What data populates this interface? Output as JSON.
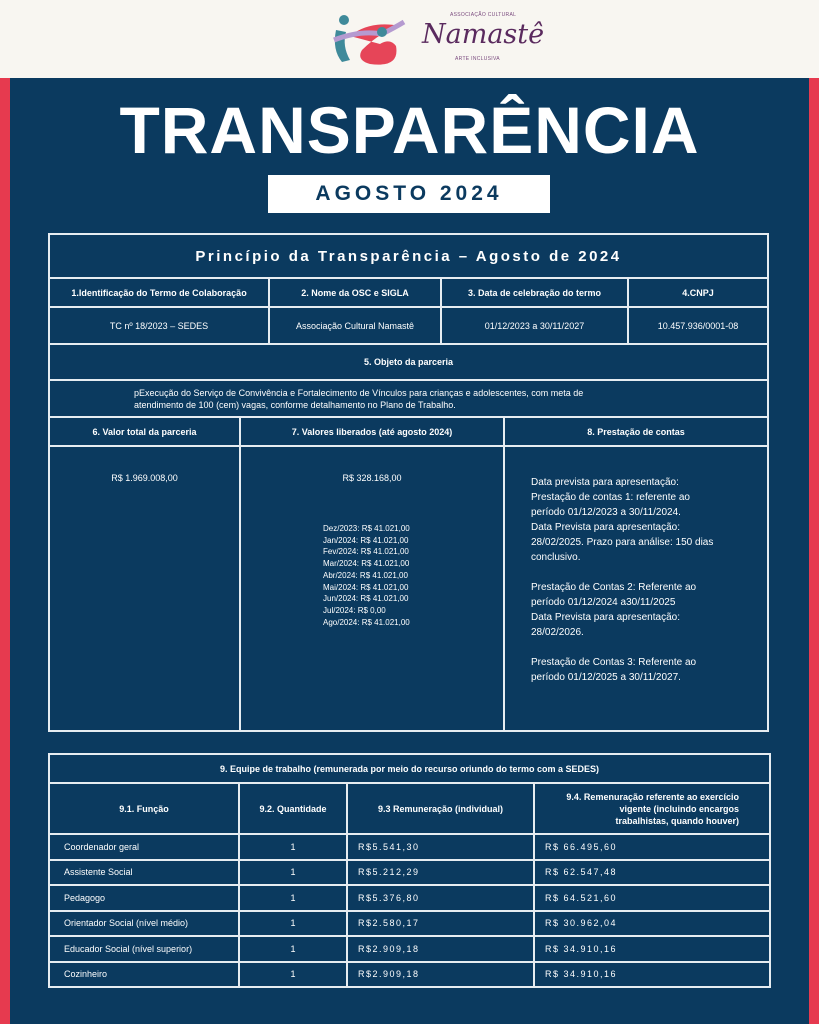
{
  "logo": {
    "top": "ASSOCIAÇÃO CULTURAL",
    "name": "Namastê",
    "bottom": "ARTE INCLUSIVA"
  },
  "header": {
    "title": "TRANSPARÊNCIA",
    "subtitle": "AGOSTO 2024"
  },
  "colors": {
    "navy": "#0b3a5f",
    "red": "#e63a4f",
    "cream": "#f8f6f1"
  },
  "table1": {
    "title": "Princípio da Transparência – Agosto de 2024",
    "headers": [
      "1.Identificação do Termo de Colaboração",
      "2. Nome da OSC e SIGLA",
      "3. Data de celebração do termo",
      "4.CNPJ"
    ],
    "values": [
      "TC nº 18/2023 – SEDES",
      "Associação Cultural Namastê",
      "01/12/2023 a 30/11/2027",
      "10.457.936/0001-08"
    ],
    "objeto_header": "5. Objeto da parceria",
    "objeto_text": "pExecução do Serviço de Convivência e Fortalecimento de Vínculos para crianças e adolescentes, com meta de atendimento de 100 (cem) vagas, conforme detalhamento no Plano de Trabalho.",
    "sec_headers": [
      "6. Valor total da parceria",
      "7. Valores liberados (até agosto 2024)",
      "8. Prestação de contas"
    ],
    "valor_total": "R$ 1.969.008,00",
    "valores_liberados": "R$ 328.168,00",
    "mensal": [
      "Dez/2023: R$ 41.021,00",
      "Jan/2024: R$ 41.021,00",
      "Fev/2024: R$ 41.021,00",
      "Mar/2024: R$ 41.021,00",
      "Abr/2024: R$ 41.021,00",
      "Mai/2024: R$ 41.021,00",
      "Jun/2024: R$ 41.021,00",
      "Jul/2024: R$ 0,00",
      "Ago/2024: R$ 41.021,00"
    ],
    "prestacao": [
      "Data prevista para apresentação:",
      "Prestação de contas 1: referente ao",
      "período 01/12/2023 a 30/11/2024.",
      "Data Prevista para apresentação:",
      "28/02/2025. Prazo para análise: 150 dias",
      "conclusivo.",
      "",
      "Prestação de Contas 2: Referente ao",
      "período 01/12/2024 a30/11/2025",
      "Data Prevista para apresentação:",
      "28/02/2026.",
      "",
      "Prestação de Contas 3: Referente ao",
      "período 01/12/2025 a 30/11/2027."
    ]
  },
  "table2": {
    "title": "9. Equipe de trabalho (remunerada por meio do recurso oriundo do termo com a SEDES)",
    "headers": [
      "9.1. Função",
      "9.2. Quantidade",
      "9.3 Remuneração (individual)",
      "9.4. Remenuração referente ao exercício vigente (incluindo encargos trabalhistas, quando houver)"
    ],
    "rows": [
      [
        "Coordenador geral",
        "1",
        "R$5.541,30",
        "R$ 66.495,60"
      ],
      [
        "Assistente Social",
        "1",
        "R$5.212,29",
        "R$ 62.547,48"
      ],
      [
        "Pedagogo",
        "1",
        "R$5.376,80",
        "R$ 64.521,60"
      ],
      [
        "Orientador Social (nível médio)",
        "1",
        "R$2.580,17",
        "R$ 30.962,04"
      ],
      [
        "Educador Social (nível superior)",
        "1",
        "R$2.909,18",
        "R$ 34.910,16"
      ],
      [
        "Cozinheiro",
        "1",
        "R$2.909,18",
        "R$ 34.910,16"
      ]
    ]
  }
}
